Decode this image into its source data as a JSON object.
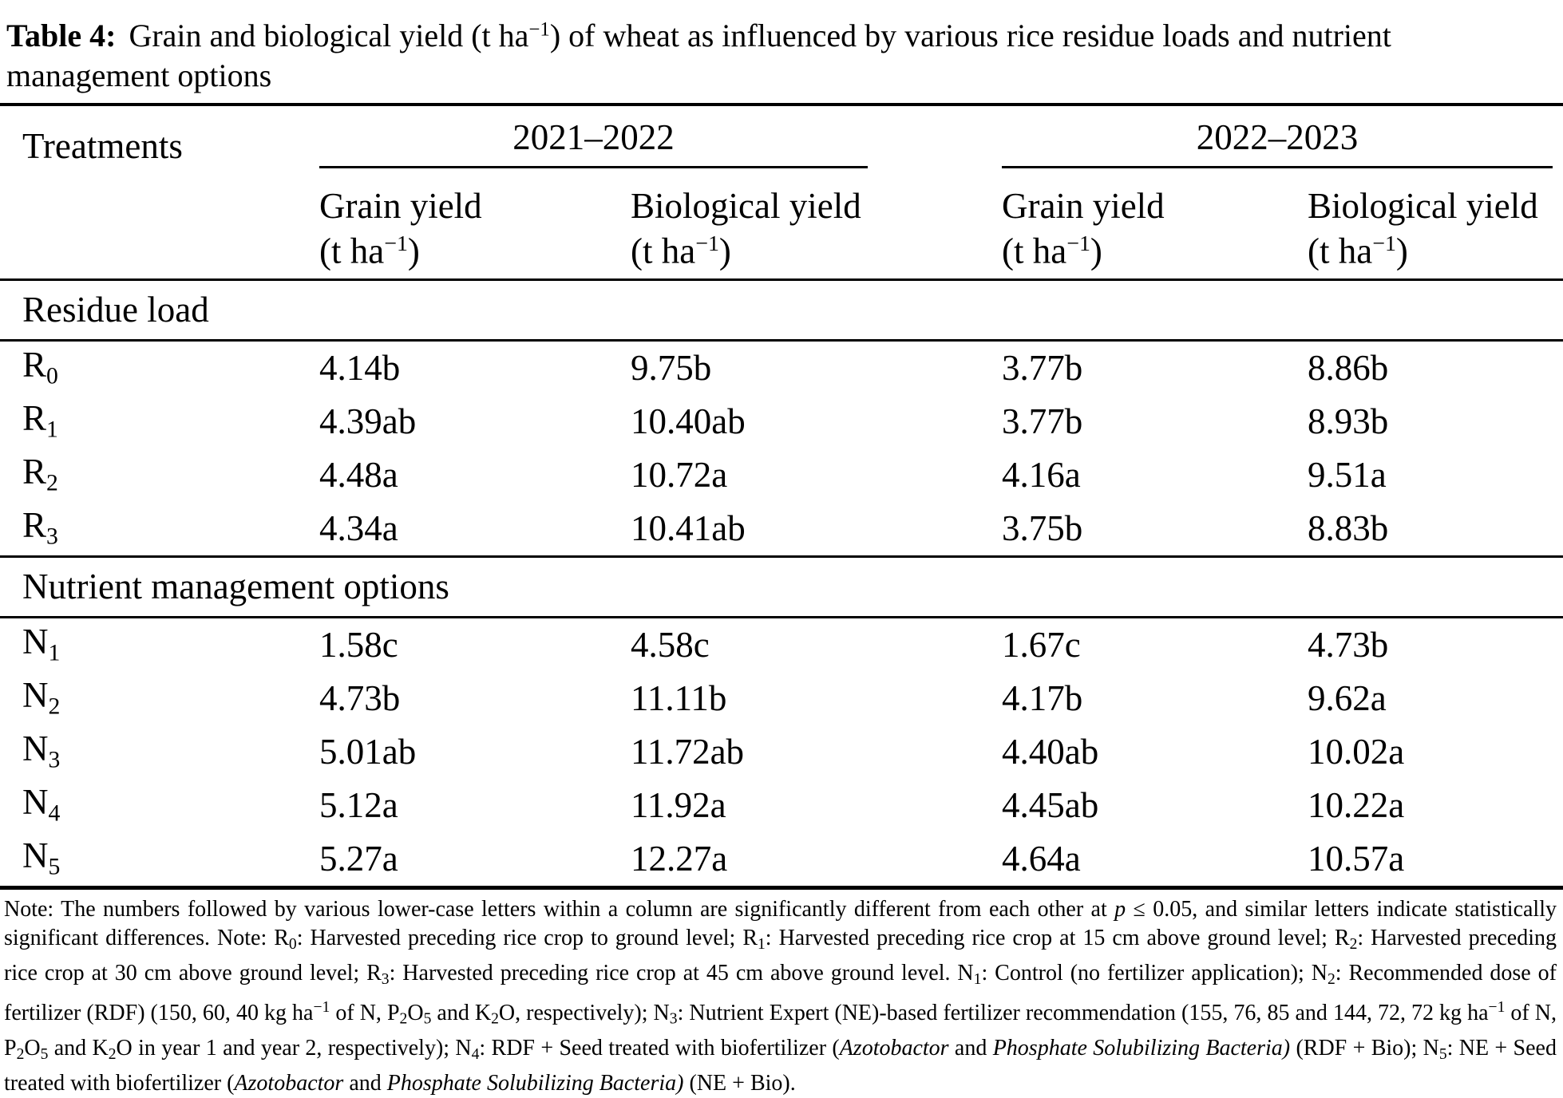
{
  "title": {
    "label": "Table 4:",
    "pre": "Grain and biological yield (t ha",
    "sup": "−1",
    "post": ") of wheat as influenced by various rice residue loads and nutrient management options"
  },
  "table": {
    "treatments_header": "Treatments",
    "year_groups": [
      "2021–2022",
      "2022–2023"
    ],
    "subcolumns": [
      {
        "name": "Grain yield",
        "unit_pre": "(t ha",
        "unit_sup": "−1",
        "unit_post": ")"
      },
      {
        "name": "Biological yield",
        "unit_pre": "(t ha",
        "unit_sup": "−1",
        "unit_post": ")"
      },
      {
        "name": "Grain yield",
        "unit_pre": "(t ha",
        "unit_sup": "−1",
        "unit_post": ")"
      },
      {
        "name": "Biological yield",
        "unit_pre": "(t ha",
        "unit_sup": "−1",
        "unit_post": ")"
      }
    ],
    "sections": [
      {
        "header": "Residue load",
        "rows": [
          {
            "label": "R",
            "sub": "0",
            "values": [
              "4.14b",
              "9.75b",
              "3.77b",
              "8.86b"
            ]
          },
          {
            "label": "R",
            "sub": "1",
            "values": [
              "4.39ab",
              "10.40ab",
              "3.77b",
              "8.93b"
            ]
          },
          {
            "label": "R",
            "sub": "2",
            "values": [
              "4.48a",
              "10.72a",
              "4.16a",
              "9.51a"
            ]
          },
          {
            "label": "R",
            "sub": "3",
            "values": [
              "4.34a",
              "10.41ab",
              "3.75b",
              "8.83b"
            ]
          }
        ]
      },
      {
        "header": "Nutrient management options",
        "rows": [
          {
            "label": "N",
            "sub": "1",
            "values": [
              "1.58c",
              "4.58c",
              "1.67c",
              "4.73b"
            ]
          },
          {
            "label": "N",
            "sub": "2",
            "values": [
              "4.73b",
              "11.11b",
              "4.17b",
              "9.62a"
            ]
          },
          {
            "label": "N",
            "sub": "3",
            "values": [
              "5.01ab",
              "11.72ab",
              "4.40ab",
              "10.02a"
            ]
          },
          {
            "label": "N",
            "sub": "4",
            "values": [
              "5.12a",
              "11.92a",
              "4.45ab",
              "10.22a"
            ]
          },
          {
            "label": "N",
            "sub": "5",
            "values": [
              "5.27a",
              "12.27a",
              "4.64a",
              "10.57a"
            ]
          }
        ]
      }
    ]
  },
  "note": {
    "segments": [
      {
        "text": "Note: The numbers followed by various lower-case letters within a column are significantly different from each other at ",
        "style": "normal"
      },
      {
        "text": "p",
        "style": "italic"
      },
      {
        "text": " ≤ 0.05, and similar letters indicate statistically significant differences. Note: R",
        "style": "normal"
      },
      {
        "text": "0",
        "style": "sub"
      },
      {
        "text": ": Harvested preceding rice crop to ground level; R",
        "style": "normal"
      },
      {
        "text": "1",
        "style": "sub"
      },
      {
        "text": ": Harvested preceding rice crop at 15 cm above ground level; R",
        "style": "normal"
      },
      {
        "text": "2",
        "style": "sub"
      },
      {
        "text": ": Harvested preceding rice crop at 30 cm above ground level; R",
        "style": "normal"
      },
      {
        "text": "3",
        "style": "sub"
      },
      {
        "text": ": Harvested preceding rice crop at 45 cm above ground level. N",
        "style": "normal"
      },
      {
        "text": "1",
        "style": "sub"
      },
      {
        "text": ": Control (no fertilizer application); N",
        "style": "normal"
      },
      {
        "text": "2",
        "style": "sub"
      },
      {
        "text": ": Recommended dose of fertilizer (RDF) (150, 60, 40 kg ha",
        "style": "normal"
      },
      {
        "text": "−1",
        "style": "sup"
      },
      {
        "text": " of N, P",
        "style": "normal"
      },
      {
        "text": "2",
        "style": "sub"
      },
      {
        "text": "O",
        "style": "normal"
      },
      {
        "text": "5",
        "style": "sub"
      },
      {
        "text": " and K",
        "style": "normal"
      },
      {
        "text": "2",
        "style": "sub"
      },
      {
        "text": "O, respectively); N",
        "style": "normal"
      },
      {
        "text": "3",
        "style": "sub"
      },
      {
        "text": ": Nutrient Expert (NE)-based fertilizer recommendation (155, 76, 85 and 144, 72, 72 kg ha",
        "style": "normal"
      },
      {
        "text": "−1",
        "style": "sup"
      },
      {
        "text": " of N, P",
        "style": "normal"
      },
      {
        "text": "2",
        "style": "sub"
      },
      {
        "text": "O",
        "style": "normal"
      },
      {
        "text": "5",
        "style": "sub"
      },
      {
        "text": " and K",
        "style": "normal"
      },
      {
        "text": "2",
        "style": "sub"
      },
      {
        "text": "O in year 1 and year 2, respectively); N",
        "style": "normal"
      },
      {
        "text": "4",
        "style": "sub"
      },
      {
        "text": ": RDF + Seed treated with biofertilizer (",
        "style": "normal"
      },
      {
        "text": "Azotobactor",
        "style": "italic"
      },
      {
        "text": " and ",
        "style": "normal"
      },
      {
        "text": "Phosphate Solubilizing Bacteria)",
        "style": "italic"
      },
      {
        "text": " (RDF + Bio); N",
        "style": "normal"
      },
      {
        "text": "5",
        "style": "sub"
      },
      {
        "text": ": NE + Seed treated with biofertilizer (",
        "style": "normal"
      },
      {
        "text": "Azotobactor",
        "style": "italic"
      },
      {
        "text": " and ",
        "style": "normal"
      },
      {
        "text": "Phosphate Solubilizing Bacteria)",
        "style": "italic"
      },
      {
        "text": " (NE + Bio).",
        "style": "normal"
      }
    ]
  },
  "colors": {
    "text": "#000000",
    "background": "#ffffff",
    "rule": "#000000"
  }
}
